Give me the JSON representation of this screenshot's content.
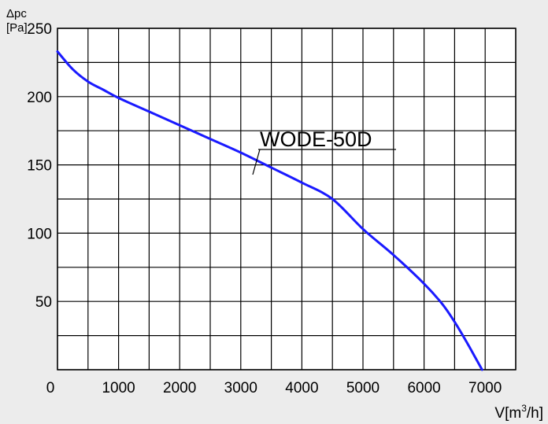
{
  "chart_data": {
    "type": "line",
    "title": "",
    "ylabel_lines": [
      "Δpc",
      "[Pa]"
    ],
    "xlabel": {
      "prefix": "V[m",
      "sup": "3",
      "suffix": "/h]"
    },
    "xlim": [
      0,
      7500
    ],
    "ylim": [
      0,
      250
    ],
    "x_ticks": [
      0,
      1000,
      2000,
      3000,
      4000,
      5000,
      6000,
      7000
    ],
    "y_ticks": [
      50,
      100,
      150,
      200,
      250
    ],
    "grid": true,
    "series": [
      {
        "name": "WODE-50D",
        "color": "#1a1aff",
        "x": [
          0,
          250,
          500,
          750,
          1000,
          1500,
          2000,
          2500,
          3000,
          3500,
          4000,
          4500,
          5000,
          5500,
          6000,
          6300,
          6500,
          6700,
          6850,
          6950
        ],
        "y": [
          233,
          220,
          211,
          205,
          199,
          189,
          179,
          169,
          159,
          148,
          137,
          125,
          103,
          84,
          63,
          48,
          35,
          20,
          8,
          0
        ]
      }
    ]
  }
}
